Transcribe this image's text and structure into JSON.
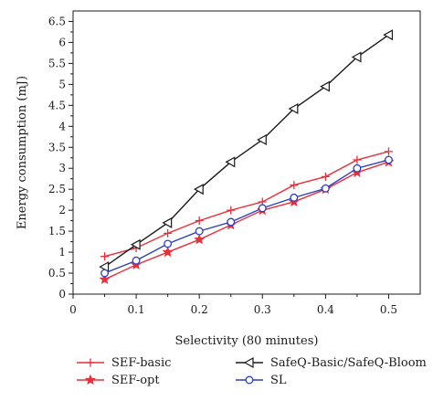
{
  "chart_data": {
    "type": "line",
    "xlabel": "Selectivity (80 minutes)",
    "ylabel": "Energy consumption (mJ)",
    "xlim": [
      0,
      0.55
    ],
    "ylim": [
      0,
      6.75
    ],
    "x_ticks": [
      "0",
      "0.1",
      "0.2",
      "0.3",
      "0.4",
      "0.5"
    ],
    "x_tick_values": [
      0,
      0.1,
      0.2,
      0.3,
      0.4,
      0.5
    ],
    "y_ticks": [
      "0",
      "0.5",
      "1",
      "1.5",
      "2",
      "2.5",
      "3",
      "3.5",
      "4",
      "4.5",
      "5",
      "5.5",
      "6",
      "6.5"
    ],
    "y_tick_values": [
      0,
      0.5,
      1,
      1.5,
      2,
      2.5,
      3,
      3.5,
      4,
      4.5,
      5,
      5.5,
      6,
      6.5
    ],
    "grid": false,
    "legend_position": "bottom",
    "x": [
      0.05,
      0.1,
      0.15,
      0.2,
      0.25,
      0.3,
      0.35,
      0.4,
      0.45,
      0.5
    ],
    "series": [
      {
        "name": "SEF-basic",
        "color": "#e8303a",
        "marker": "plus",
        "values": [
          0.9,
          1.1,
          1.45,
          1.75,
          2.0,
          2.2,
          2.6,
          2.8,
          3.2,
          3.4
        ]
      },
      {
        "name": "SafeQ-Basic/SafeQ-Bloom",
        "color": "#1a1a1a",
        "marker": "triangle-left",
        "values": [
          0.65,
          1.18,
          1.7,
          2.5,
          3.15,
          3.68,
          4.42,
          4.95,
          5.65,
          6.18
        ]
      },
      {
        "name": "SEF-opt",
        "color": "#e8303a",
        "marker": "star",
        "values": [
          0.35,
          0.7,
          1.0,
          1.3,
          1.65,
          2.0,
          2.2,
          2.5,
          2.9,
          3.15
        ]
      },
      {
        "name": "SL",
        "color": "#2a3fc0",
        "marker": "circle",
        "values": [
          0.5,
          0.8,
          1.2,
          1.5,
          1.72,
          2.05,
          2.3,
          2.52,
          3.0,
          3.2
        ]
      }
    ]
  }
}
